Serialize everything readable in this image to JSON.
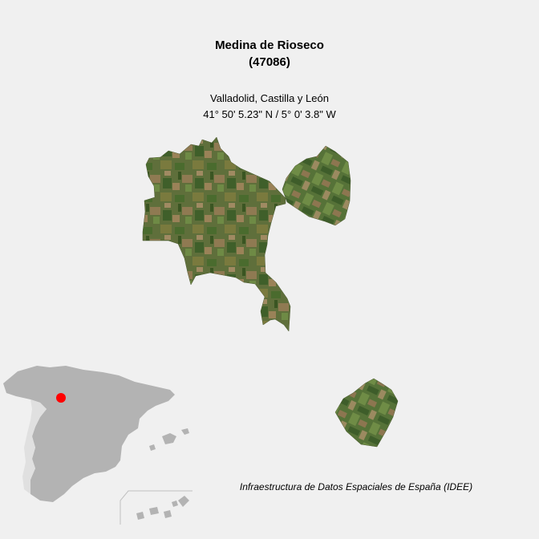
{
  "municipality": {
    "name": "Medina de Rioseco",
    "code": "(47086)",
    "region": "Valladolid, Castilla y León",
    "coordinates": "41° 50' 5.23\" N / 5° 0' 3.8\" W"
  },
  "attribution": "Infraestructura de Datos Espaciales de España (IDEE)",
  "colors": {
    "background": "#f0f0f0",
    "terrain": "#5d6e3a",
    "inset_land": "#b3b3b3",
    "locator_marker": "#ff0000"
  },
  "icons": {
    "locator": "red-dot-marker"
  }
}
